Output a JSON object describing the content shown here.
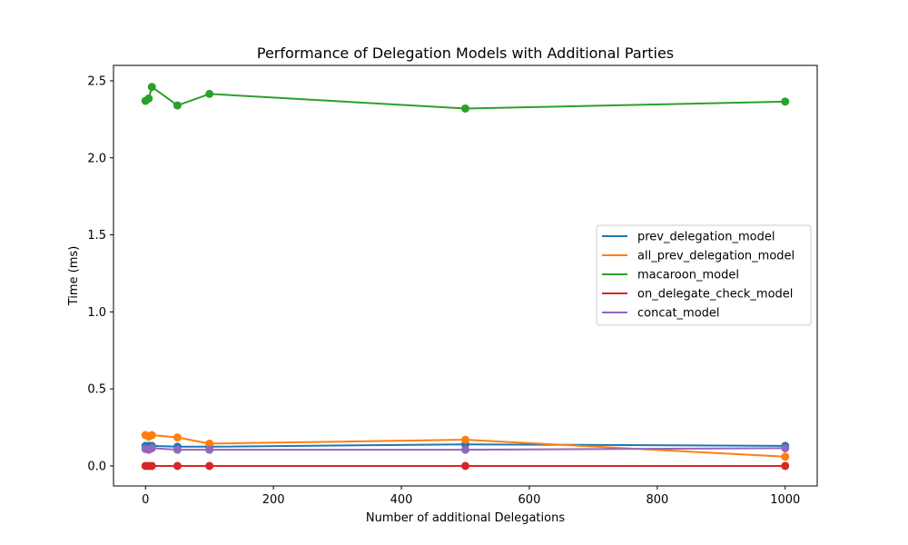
{
  "chart_data": {
    "type": "line",
    "title": "Performance of Delegation Models with Additional Parties",
    "xlabel": "Number of additional Delegations",
    "ylabel": "Time (ms)",
    "xlim": [
      -50,
      1050
    ],
    "ylim": [
      -0.13,
      2.6
    ],
    "xticks": [
      0,
      200,
      400,
      600,
      800,
      1000
    ],
    "yticks": [
      0.0,
      0.5,
      1.0,
      1.5,
      2.0,
      2.5
    ],
    "ytick_labels": [
      "0.0",
      "0.5",
      "1.0",
      "1.5",
      "2.0",
      "2.5"
    ],
    "x": [
      0,
      5,
      10,
      50,
      100,
      500,
      1000
    ],
    "legend_position": "center-right",
    "grid": false,
    "series": [
      {
        "name": "prev_delegation_model",
        "color": "#1f77b4",
        "values": [
          0.13,
          0.13,
          0.13,
          0.125,
          0.125,
          0.14,
          0.13
        ]
      },
      {
        "name": "all_prev_delegation_model",
        "color": "#ff7f0e",
        "values": [
          0.2,
          0.19,
          0.2,
          0.185,
          0.145,
          0.17,
          0.06
        ]
      },
      {
        "name": "macaroon_model",
        "color": "#2ca02c",
        "values": [
          2.37,
          2.385,
          2.46,
          2.34,
          2.415,
          2.32,
          2.365
        ]
      },
      {
        "name": "on_delegate_check_model",
        "color": "#d62728",
        "values": [
          0.0,
          0.0,
          0.0,
          0.0,
          0.0,
          0.0,
          0.0
        ]
      },
      {
        "name": "concat_model",
        "color": "#9467bd",
        "values": [
          0.11,
          0.105,
          0.115,
          0.105,
          0.105,
          0.105,
          0.115
        ]
      }
    ]
  }
}
